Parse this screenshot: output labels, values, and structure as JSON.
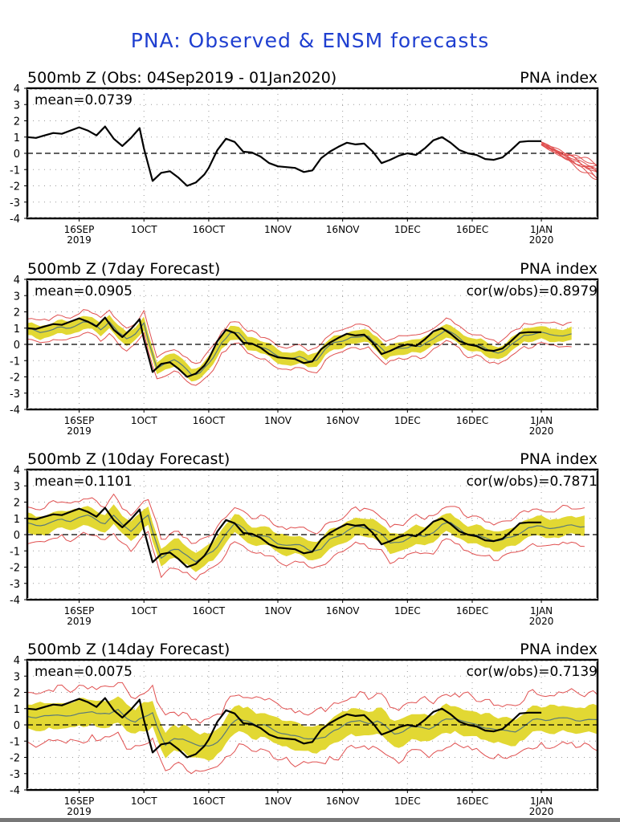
{
  "title": "PNA: Observed & ENSM forecasts",
  "colors": {
    "title": "#1f3fd0",
    "observed": "#000000",
    "ensemble_band": "#e2d833",
    "ensemble_mean": "#5a7a7a",
    "ensemble_spread_line": "#e05050",
    "grid": "#9a9a9a"
  },
  "chart_data": [
    {
      "type": "line",
      "title": "500mb Z (Obs: 04Sep2019 - 01Jan2020)",
      "right_label": "PNA index",
      "stat_left": "mean=0.0739",
      "stat_right": "",
      "xlabel": "",
      "ylabel": "",
      "ylim": [
        -4,
        4
      ],
      "yticks": [
        "4",
        "3",
        "2",
        "1",
        "0",
        "-1",
        "-2",
        "-3",
        "-4"
      ],
      "xlim_days": [
        0,
        132
      ],
      "xticks": [
        {
          "day": 12,
          "label": "16SEP",
          "sub": "2019"
        },
        {
          "day": 27,
          "label": "1OCT",
          "sub": ""
        },
        {
          "day": 42,
          "label": "16OCT",
          "sub": ""
        },
        {
          "day": 58,
          "label": "1NOV",
          "sub": ""
        },
        {
          "day": 73,
          "label": "16NOV",
          "sub": ""
        },
        {
          "day": 88,
          "label": "1DEC",
          "sub": ""
        },
        {
          "day": 103,
          "label": "16DEC",
          "sub": ""
        },
        {
          "day": 119,
          "label": "1JAN",
          "sub": "2020"
        }
      ],
      "grid": true,
      "mode": "obs"
    },
    {
      "type": "line",
      "title": "500mb Z (7day Forecast)",
      "right_label": "PNA index",
      "stat_left": "mean=0.0905",
      "stat_right": "cor(w/obs)=0.8979",
      "ylim": [
        -4,
        4
      ],
      "yticks": [
        "4",
        "3",
        "2",
        "1",
        "0",
        "-1",
        "-2",
        "-3",
        "-4"
      ],
      "xlim_days": [
        0,
        132
      ],
      "xticks": [
        {
          "day": 12,
          "label": "16SEP",
          "sub": "2019"
        },
        {
          "day": 27,
          "label": "1OCT",
          "sub": ""
        },
        {
          "day": 42,
          "label": "16OCT",
          "sub": ""
        },
        {
          "day": 58,
          "label": "1NOV",
          "sub": ""
        },
        {
          "day": 73,
          "label": "16NOV",
          "sub": ""
        },
        {
          "day": 88,
          "label": "1DEC",
          "sub": ""
        },
        {
          "day": 103,
          "label": "16DEC",
          "sub": ""
        },
        {
          "day": 119,
          "label": "1JAN",
          "sub": "2020"
        }
      ],
      "grid": true,
      "mode": "forecast",
      "forecast_end_day": 126,
      "band_halfwidth": 0.35,
      "spread_halfwidth": 0.6,
      "mean_bias": -0.1
    },
    {
      "type": "line",
      "title": "500mb Z (10day Forecast)",
      "right_label": "PNA index",
      "stat_left": "mean=0.1101",
      "stat_right": "cor(w/obs)=0.7871",
      "ylim": [
        -4,
        4
      ],
      "yticks": [
        "4",
        "3",
        "2",
        "1",
        "0",
        "-1",
        "-2",
        "-3",
        "-4"
      ],
      "xlim_days": [
        0,
        132
      ],
      "xticks": [
        {
          "day": 12,
          "label": "16SEP",
          "sub": "2019"
        },
        {
          "day": 27,
          "label": "1OCT",
          "sub": ""
        },
        {
          "day": 42,
          "label": "16OCT",
          "sub": ""
        },
        {
          "day": 58,
          "label": "1NOV",
          "sub": ""
        },
        {
          "day": 73,
          "label": "16NOV",
          "sub": ""
        },
        {
          "day": 88,
          "label": "1DEC",
          "sub": ""
        },
        {
          "day": 103,
          "label": "16DEC",
          "sub": ""
        },
        {
          "day": 119,
          "label": "1JAN",
          "sub": "2020"
        }
      ],
      "grid": true,
      "mode": "forecast",
      "forecast_end_day": 129,
      "band_halfwidth": 0.5,
      "spread_halfwidth": 0.95,
      "mean_bias": -0.15
    },
    {
      "type": "line",
      "title": "500mb Z (14day Forecast)",
      "right_label": "PNA index",
      "stat_left": "mean=0.0075",
      "stat_right": "cor(w/obs)=0.7139",
      "ylim": [
        -4,
        4
      ],
      "yticks": [
        "4",
        "3",
        "2",
        "1",
        "0",
        "-1",
        "-2",
        "-3",
        "-4"
      ],
      "xlim_days": [
        0,
        132
      ],
      "xticks": [
        {
          "day": 12,
          "label": "16SEP",
          "sub": "2019"
        },
        {
          "day": 27,
          "label": "1OCT",
          "sub": ""
        },
        {
          "day": 42,
          "label": "16OCT",
          "sub": ""
        },
        {
          "day": 58,
          "label": "1NOV",
          "sub": ""
        },
        {
          "day": 73,
          "label": "16NOV",
          "sub": ""
        },
        {
          "day": 88,
          "label": "1DEC",
          "sub": ""
        },
        {
          "day": 103,
          "label": "16DEC",
          "sub": ""
        },
        {
          "day": 119,
          "label": "1JAN",
          "sub": "2020"
        }
      ],
      "grid": true,
      "mode": "forecast",
      "forecast_end_day": 132,
      "band_halfwidth": 0.7,
      "spread_halfwidth": 1.4,
      "mean_bias": -0.3
    }
  ],
  "observed": {
    "days": [
      0,
      2,
      4,
      6,
      8,
      10,
      12,
      14,
      16,
      18,
      20,
      22,
      24,
      26,
      27,
      29,
      31,
      33,
      35,
      37,
      39,
      41,
      42,
      44,
      46,
      48,
      50,
      52,
      54,
      56,
      58,
      60,
      62,
      64,
      66,
      68,
      70,
      72,
      74,
      76,
      78,
      80,
      82,
      84,
      86,
      88,
      90,
      92,
      94,
      96,
      98,
      100,
      102,
      104,
      106,
      108,
      110,
      112,
      114,
      116,
      118,
      119
    ],
    "values": [
      1.0,
      0.95,
      1.1,
      1.25,
      1.2,
      1.4,
      1.6,
      1.4,
      1.1,
      1.65,
      0.9,
      0.45,
      0.95,
      1.55,
      0.3,
      -1.7,
      -1.2,
      -1.1,
      -1.5,
      -2.0,
      -1.8,
      -1.3,
      -0.9,
      0.2,
      0.9,
      0.7,
      0.1,
      0.05,
      -0.2,
      -0.6,
      -0.8,
      -0.85,
      -0.9,
      -1.15,
      -1.05,
      -0.3,
      0.1,
      0.4,
      0.65,
      0.55,
      0.6,
      0.1,
      -0.6,
      -0.4,
      -0.15,
      0.0,
      -0.1,
      0.3,
      0.8,
      1.0,
      0.65,
      0.2,
      0.0,
      -0.1,
      -0.35,
      -0.4,
      -0.25,
      0.2,
      0.7,
      0.75,
      0.75,
      0.75
    ]
  },
  "obs_forecast_members": {
    "start_day": 119,
    "end_day": 132,
    "start_value": 0.6,
    "end_values": [
      -0.8,
      -1.0,
      -1.2,
      -1.4,
      -1.5,
      -0.9,
      -1.3,
      -1.1,
      -1.6,
      -0.7
    ]
  }
}
